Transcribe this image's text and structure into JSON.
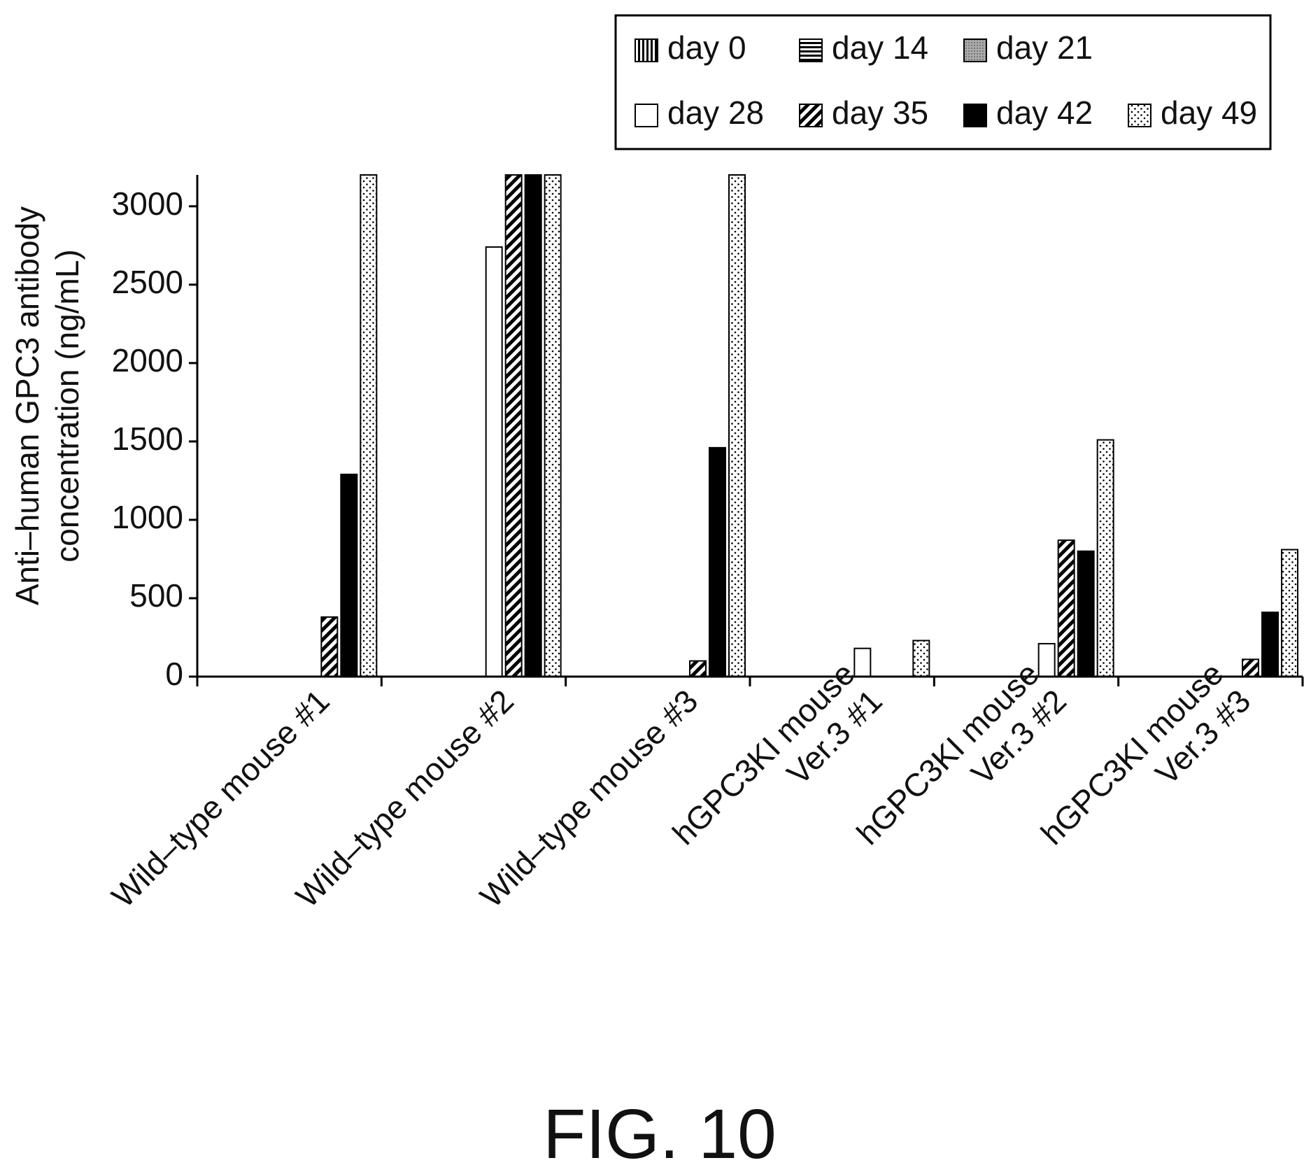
{
  "figure_label": "FIG. 10",
  "chart_data": {
    "type": "bar",
    "ylabel_lines": [
      "Anti–human GPC3 antibody",
      "concentration (ng/mL)"
    ],
    "ylim": [
      0,
      3200
    ],
    "yticks": [
      "0",
      "500",
      "1000",
      "1500",
      "2000",
      "2500",
      "3000"
    ],
    "categories": [
      [
        "Wild–type mouse #1"
      ],
      [
        "Wild–type mouse #2"
      ],
      [
        "Wild–type mouse #3"
      ],
      [
        "hGPC3KI mouse",
        "Ver.3 #1"
      ],
      [
        "hGPC3KI mouse",
        "Ver.3 #2"
      ],
      [
        "hGPC3KI mouse",
        "Ver.3 #3"
      ]
    ],
    "legend_position": "top-right",
    "series": [
      {
        "name": "day 0",
        "pattern": "vlines",
        "values": [
          0,
          0,
          0,
          0,
          0,
          0
        ]
      },
      {
        "name": "day 14",
        "pattern": "hlines",
        "values": [
          0,
          0,
          0,
          0,
          0,
          0
        ]
      },
      {
        "name": "day 21",
        "pattern": "gray",
        "values": [
          0,
          0,
          0,
          0,
          0,
          0
        ]
      },
      {
        "name": "day 28",
        "pattern": "white",
        "values": [
          0,
          2740,
          0,
          180,
          210,
          0
        ]
      },
      {
        "name": "day 35",
        "pattern": "diag",
        "values": [
          380,
          3200,
          100,
          0,
          870,
          110
        ]
      },
      {
        "name": "day 42",
        "pattern": "black",
        "values": [
          1290,
          3200,
          1460,
          0,
          800,
          410
        ]
      },
      {
        "name": "day 49",
        "pattern": "dots",
        "values": [
          3200,
          3200,
          3200,
          230,
          1510,
          810
        ]
      }
    ]
  }
}
